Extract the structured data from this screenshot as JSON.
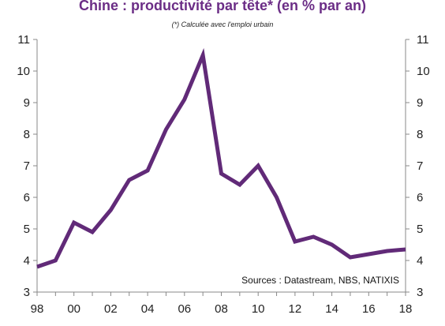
{
  "chart_data": {
    "type": "line",
    "title": "Chine : productivité par tête* (en % par an)",
    "subtitle": "(*) Calculée avec l'emploi urbain",
    "source": "Sources : Datastream,  NBS, NATIXIS",
    "x": [
      1998,
      1999,
      2000,
      2001,
      2002,
      2003,
      2004,
      2005,
      2006,
      2007,
      2008,
      2009,
      2010,
      2011,
      2012,
      2013,
      2014,
      2015,
      2016,
      2017,
      2018
    ],
    "x_tick_values": [
      1998,
      2000,
      2002,
      2004,
      2006,
      2008,
      2010,
      2012,
      2014,
      2016,
      2018
    ],
    "x_tick_labels": [
      "98",
      "00",
      "02",
      "04",
      "06",
      "08",
      "10",
      "12",
      "14",
      "16",
      "18"
    ],
    "series": [
      {
        "values": [
          3.8,
          4.0,
          5.2,
          4.9,
          5.6,
          6.55,
          6.85,
          8.15,
          9.1,
          10.5,
          6.75,
          6.4,
          7.0,
          6.0,
          4.6,
          4.75,
          4.5,
          4.1,
          4.2,
          4.3,
          4.35
        ]
      }
    ],
    "ylim": [
      3,
      11
    ],
    "y_ticks": [
      3,
      4,
      5,
      6,
      7,
      8,
      9,
      10,
      11
    ],
    "xlim": [
      1998,
      2018
    ],
    "grid": false,
    "legend": "none",
    "line_color": "#612a78",
    "title_color": "#6b2d86"
  }
}
